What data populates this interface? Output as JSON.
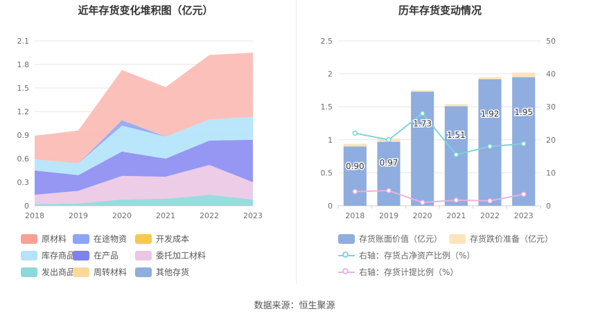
{
  "left_chart": {
    "title": "近年存货变化堆积图（亿元）"
  },
  "right_chart": {
    "title": "历年存货变动情况"
  },
  "source_text": "数据来源：恒生聚源",
  "chart_data": [
    {
      "type": "area",
      "title": "近年存货变化堆积图（亿元）",
      "categories": [
        "2018",
        "2019",
        "2020",
        "2021",
        "2022",
        "2023"
      ],
      "ylim": [
        0,
        2.1
      ],
      "yticks": [
        "0",
        "0.3",
        "0.6",
        "0.9",
        "1.2",
        "1.5",
        "1.8",
        "2.1"
      ],
      "stacked": true,
      "series": [
        {
          "name": "发出商品",
          "color": "#8dd8d8",
          "values": [
            0.02,
            0.03,
            0.08,
            0.09,
            0.14,
            0.08
          ]
        },
        {
          "name": "委托加工材料",
          "color": "#ebc6e4",
          "values": [
            0.12,
            0.16,
            0.3,
            0.28,
            0.38,
            0.22
          ]
        },
        {
          "name": "在产品",
          "color": "#8b8cf2",
          "values": [
            0.31,
            0.2,
            0.31,
            0.23,
            0.31,
            0.54
          ]
        },
        {
          "name": "其他存货",
          "color": "#8fadde",
          "values": [
            0.0,
            0.0,
            0.0,
            0.0,
            0.0,
            0.0
          ]
        },
        {
          "name": "开发成本",
          "color": "#f7c948",
          "values": [
            0.0,
            0.0,
            0.0,
            0.0,
            0.0,
            0.0
          ]
        },
        {
          "name": "周转材料",
          "color": "#fbd89a",
          "values": [
            0.0,
            0.0,
            0.0,
            0.0,
            0.0,
            0.0
          ]
        },
        {
          "name": "库存商品",
          "color": "#b3e3fb",
          "values": [
            0.14,
            0.15,
            0.33,
            0.28,
            0.27,
            0.29
          ]
        },
        {
          "name": "在途物资",
          "color": "#8ea5f5",
          "values": [
            0.0,
            0.0,
            0.07,
            0.0,
            0.0,
            0.0
          ]
        },
        {
          "name": "原材料",
          "color": "#fcb9b2",
          "values": [
            0.3,
            0.42,
            0.64,
            0.63,
            0.82,
            0.82
          ]
        }
      ],
      "legend": [
        {
          "name": "原材料",
          "color": "#f7a096"
        },
        {
          "name": "在途物资",
          "color": "#8ea5f5"
        },
        {
          "name": "开发成本",
          "color": "#f7c948"
        },
        {
          "name": "库存商品",
          "color": "#b3e3fb"
        },
        {
          "name": "在产品",
          "color": "#7f81ef"
        },
        {
          "name": "委托加工材料",
          "color": "#ebc6e4"
        },
        {
          "name": "发出商品",
          "color": "#8dd8d8"
        },
        {
          "name": "周转材料",
          "color": "#fbd89a"
        },
        {
          "name": "其他存货",
          "color": "#8fadde"
        }
      ]
    },
    {
      "type": "bar",
      "title": "历年存货变动情况",
      "categories": [
        "2018",
        "2019",
        "2020",
        "2021",
        "2022",
        "2023"
      ],
      "ylim_left": [
        0,
        2.5
      ],
      "yticks_left": [
        "0",
        "0.5",
        "1",
        "1.5",
        "2",
        "2.5"
      ],
      "ylim_right": [
        0,
        50
      ],
      "yticks_right": [
        "0",
        "10",
        "20",
        "30",
        "40",
        "50"
      ],
      "series": [
        {
          "name": "存货账面价值（亿元）",
          "color": "#8fadde",
          "axis": "left",
          "kind": "bar",
          "values": [
            0.9,
            0.97,
            1.73,
            1.51,
            1.92,
            1.95
          ],
          "labels": [
            "0.90",
            "0.97",
            "1.73",
            "1.51",
            "1.92",
            "1.95"
          ]
        },
        {
          "name": "存货跌价准备（亿元）",
          "color": "#fde4bd",
          "axis": "left",
          "kind": "bar",
          "values": [
            0.04,
            0.05,
            0.02,
            0.03,
            0.03,
            0.07
          ]
        },
        {
          "name": "右轴：存货占净资产比例（%）",
          "color": "#7dd3d9",
          "axis": "right",
          "kind": "line",
          "values": [
            22.0,
            20.0,
            28.0,
            15.5,
            18.0,
            18.8
          ]
        },
        {
          "name": "右轴：存货计提比例（%）",
          "color": "#e9b3dc",
          "axis": "right",
          "kind": "line",
          "values": [
            4.3,
            4.6,
            1.0,
            1.7,
            1.5,
            3.5
          ]
        }
      ]
    }
  ]
}
